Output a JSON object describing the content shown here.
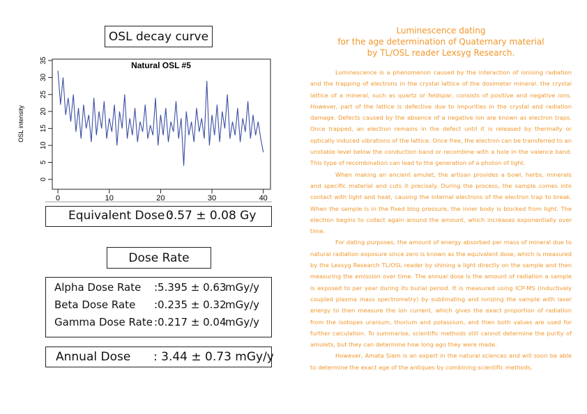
{
  "chart_data": {
    "type": "line",
    "heading": "OSL decay curve",
    "title": "Natural OSL #5",
    "y_label": "OSL intensity",
    "x": [
      0,
      0.5,
      1,
      1.5,
      2,
      2.5,
      3,
      3.5,
      4,
      4.5,
      5,
      5.5,
      6,
      6.5,
      7,
      7.5,
      8,
      8.5,
      9,
      9.5,
      10,
      10.5,
      11,
      11.5,
      12,
      12.5,
      13,
      13.5,
      14,
      14.5,
      15,
      15.5,
      16,
      16.5,
      17,
      17.5,
      18,
      18.5,
      19,
      19.5,
      20,
      20.5,
      21,
      21.5,
      22,
      22.5,
      23,
      23.5,
      24,
      24.5,
      25,
      25.5,
      26,
      26.5,
      27,
      27.5,
      28,
      28.5,
      29,
      29.5,
      30,
      30.5,
      31,
      31.5,
      32,
      32.5,
      33,
      33.5,
      34,
      34.5,
      35,
      35.5,
      36,
      36.5,
      37,
      37.5,
      38,
      38.5,
      39,
      39.5,
      40
    ],
    "values": [
      32,
      22,
      30,
      19,
      24,
      17,
      25,
      14,
      21,
      12,
      22,
      15,
      19,
      11,
      24,
      13,
      20,
      15,
      23,
      12,
      18,
      14,
      22,
      10,
      20,
      15,
      25,
      12,
      18,
      13,
      21,
      11,
      17,
      14,
      22,
      12,
      16,
      13,
      24,
      10,
      19,
      13,
      21,
      11,
      17,
      14,
      23,
      12,
      18,
      4,
      20,
      13,
      17,
      11,
      21,
      14,
      18,
      12,
      29,
      10,
      19,
      13,
      22,
      11,
      20,
      15,
      25,
      12,
      17,
      13,
      21,
      11,
      18,
      14,
      23,
      12,
      19,
      13,
      17,
      12,
      8
    ],
    "color": "#3b4ea3",
    "xlim": [
      -1.1,
      41.4
    ],
    "ylim": [
      -2.9,
      35.4
    ],
    "xticks": [
      0,
      10,
      20,
      30,
      40
    ],
    "yticks": [
      0,
      5,
      10,
      15,
      20,
      25,
      30,
      35
    ]
  },
  "equivalent_dose": {
    "label": "Equivalent Dose :",
    "value": "0.57 ± 0.08 Gy"
  },
  "dose_rate": {
    "heading": "Dose Rate",
    "rows": [
      [
        "Alpha Dose Rate",
        ":5.395 ± 0.63",
        "mGy/y"
      ],
      [
        "Beta Dose Rate",
        ":0.235 ± 0.32",
        "mGy/y"
      ],
      [
        "Gamma Dose Rate",
        ":0.217 ± 0.04",
        "mGy/y"
      ]
    ]
  },
  "annual_dose": {
    "label": "Annual Dose",
    "value": ": 3.44 ± 0.73 mGy/y"
  },
  "article": {
    "title": [
      "Luminescence dating",
      "for the age determination of Quaternary material",
      "by TL/OSL reader Lexsyg Research."
    ],
    "paragraphs": [
      "Luminescence is a phenomenon caused by the interaction of ionising radiation and the trapping of electrons in the crystal lattice of the dosimeter mineral. the crystal lattice of a mineral, such as quartz or feldspar, consists of positive and negative ions. However, part of the lattice is defective due to impurities in the crystal and radiation damage. Defects caused by the absence of a negative ion are known as electron traps. Once trapped, an electron remains in the defect until it is released by thermally or optically induced vibrations of the lattice. Once free, the electron can be transferred to an unstable level below the conduction band or recombine with a hole in the valence band. This type of recombination can lead to the generation of a photon of light.",
      "When making an ancient amulet, the artisan provides a bowl, herbs, minerals and specific material and cuts it precisely. During the process, the sample comes into contact with light and heat, causing the internal electrons of the electron trap to break. When the sample is in the fixed blog pressure, the inner body is blocked from light. The electron begins to collect again around the amount, which increases exponentially over time.",
      "For dating purposes, the amount of energy absorbed per mass of mineral due to natural radiation exposure since zero is known as the equivalent dose, which is measured by the Lexsyg Research TL/OSL reader by shining a light directly on the sample and then measuring the emission over time. The annual dose is the amount of radiation a sample is exposed to per year during its burial period. It is measured using ICP-MS (inductively coupled plasma mass spectrometry) by sublimating and ionizing the sample with laser energy to then measure the ion current, which gives the exact proportion of radiation from the isotopes uranium, thorium and potassium, and then both values are used for further calculation. To summarise, scientific methods still cannot determine the purity of amulets, but they can determine how long ago they were made.",
      "However, Amata Siam is an expert in the natural sciences and will soon be able to determine the exact age of the antiques by combining scientific methods."
    ]
  }
}
